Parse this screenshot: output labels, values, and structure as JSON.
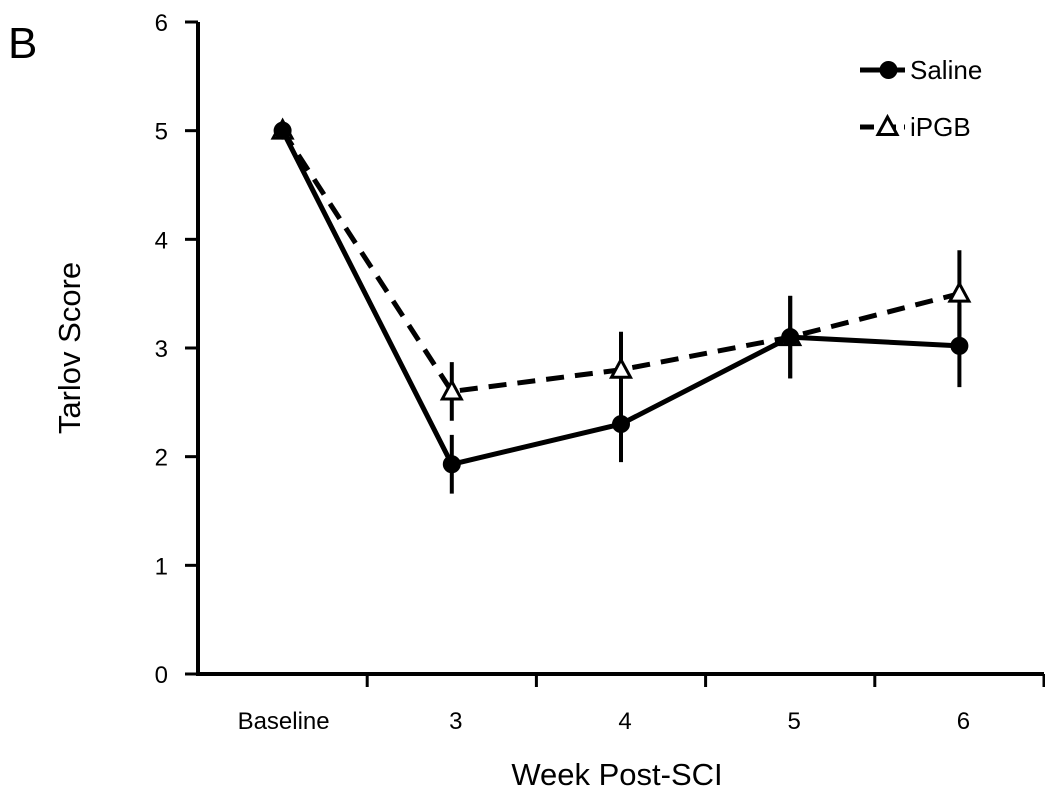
{
  "panel_label": "B",
  "chart_data": {
    "type": "line",
    "title": "",
    "xlabel": "Week Post-SCI",
    "ylabel": "Tarlov Score",
    "categories": [
      "Baseline",
      "3",
      "4",
      "5",
      "6"
    ],
    "ylim": [
      0,
      6
    ],
    "yticks": [
      0,
      1,
      2,
      3,
      4,
      5,
      6
    ],
    "grid": false,
    "legend_position": "top-right",
    "series": [
      {
        "name": "Saline",
        "marker": "filled-circle",
        "line_style": "solid",
        "color": "#000000",
        "values": [
          5.0,
          1.93,
          2.3,
          3.1,
          3.02
        ],
        "error": [
          0,
          0.27,
          0.35,
          0.38,
          0.38
        ]
      },
      {
        "name": "iPGB",
        "marker": "open-triangle",
        "line_style": "dashed",
        "color": "#000000",
        "values": [
          5.0,
          2.6,
          2.8,
          3.1,
          3.5
        ],
        "error": [
          0,
          0.27,
          0.35,
          0.38,
          0.4
        ]
      }
    ]
  }
}
